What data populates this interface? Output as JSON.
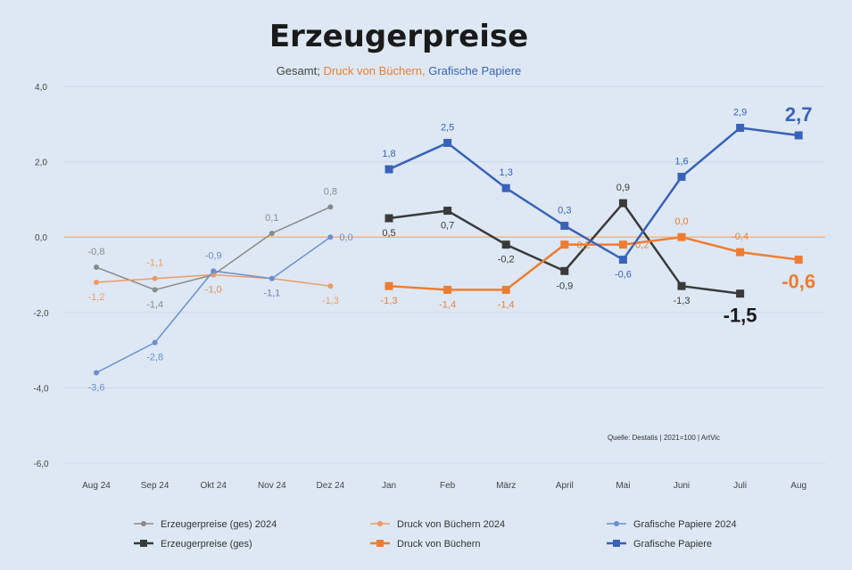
{
  "chart_data": {
    "type": "line",
    "title": "Erzeugerpreise",
    "subtitle": {
      "prefix": "Gesamt;",
      "part1": "Druck von Büchern,",
      "part2": "Grafische Papiere"
    },
    "source": "Quelle: Destatis | 2021=100 | ArtVic",
    "ylim": [
      -6.0,
      4.0
    ],
    "yticks": [
      4.0,
      2.0,
      0.0,
      -2.0,
      -4.0,
      -6.0
    ],
    "ytick_labels": [
      "4,0",
      "2,0",
      "0,0",
      "-2,0",
      "-4,0",
      "-6,0"
    ],
    "categories": [
      "Aug 24",
      "Sep 24",
      "Okt 24",
      "Nov 24",
      "Dez 24",
      "Jan",
      "Feb",
      "März",
      "April",
      "Mai",
      "Juni",
      "Juli",
      "Aug"
    ],
    "colors": {
      "gray_light": "#8a8a8a",
      "gray_dark": "#3a3a3a",
      "orange_light": "#ee9a62",
      "orange": "#ee7d31",
      "blue_light": "#6a8fd0",
      "blue": "#3a62b8",
      "zero_line": "#f2b584"
    },
    "series": [
      {
        "name": "Erzeugerpreise (ges) 2024",
        "style": "prev",
        "color": "#8a8a8a",
        "marker": "circle",
        "x": [
          "Aug 24",
          "Sep 24",
          "Okt 24",
          "Nov 24",
          "Dez 24"
        ],
        "values": [
          -0.8,
          -1.4,
          -1.0,
          0.1,
          0.8
        ],
        "labels": [
          "-0,8",
          "-1,4",
          "-1,0",
          "0,1",
          "0,8"
        ],
        "label_pos": [
          "above",
          "below",
          "below",
          "above",
          "above"
        ],
        "label_big": [
          false,
          false,
          false,
          false,
          false
        ]
      },
      {
        "name": "Druck von Büchern 2024",
        "style": "prev",
        "color": "#ee9a62",
        "marker": "circle",
        "x": [
          "Aug 24",
          "Sep 24",
          "Okt 24",
          "Nov 24",
          "Dez 24"
        ],
        "values": [
          -1.2,
          -1.1,
          -1.0,
          -1.1,
          -1.3
        ],
        "labels": [
          "-1,2",
          "-1,1",
          "-1,0",
          "-1,1",
          "-1,3"
        ],
        "label_pos": [
          "below",
          "above",
          "below",
          "below",
          "below"
        ],
        "label_big": [
          false,
          false,
          false,
          false,
          false
        ]
      },
      {
        "name": "Grafische Papiere 2024",
        "style": "prev",
        "color": "#6a8fd0",
        "marker": "circle",
        "x": [
          "Aug 24",
          "Sep 24",
          "Okt 24",
          "Nov 24",
          "Dez 24"
        ],
        "values": [
          -3.6,
          -2.8,
          -0.9,
          -1.1,
          0.0
        ],
        "labels": [
          "-3,6",
          "-2,8",
          "-0,9",
          "-1,1",
          "0,0"
        ],
        "label_pos": [
          "below",
          "below",
          "above",
          "below",
          "right"
        ],
        "label_big": [
          false,
          false,
          false,
          false,
          false
        ]
      },
      {
        "name": "Erzeugerpreise (ges)",
        "style": "curr",
        "color": "#3a3a3a",
        "marker": "square",
        "x": [
          "Jan",
          "Feb",
          "März",
          "April",
          "Mai",
          "Juni",
          "Juli"
        ],
        "values": [
          0.5,
          0.7,
          -0.2,
          -0.9,
          0.9,
          -1.3,
          -1.5
        ],
        "labels": [
          "0,5",
          "0,7",
          "-0,2",
          "-0,9",
          "0,9",
          "-1,3",
          "-1,5"
        ],
        "label_pos": [
          "below",
          "below",
          "below",
          "below",
          "above",
          "below",
          "below"
        ],
        "label_big": [
          false,
          false,
          false,
          false,
          false,
          false,
          true
        ]
      },
      {
        "name": "Druck von Büchern",
        "style": "curr",
        "color": "#ee7d31",
        "marker": "square",
        "x": [
          "Jan",
          "Feb",
          "März",
          "April",
          "Mai",
          "Juni",
          "Juli",
          "Aug"
        ],
        "values": [
          -1.3,
          -1.4,
          -1.4,
          -0.2,
          -0.2,
          0.0,
          -0.4,
          -0.6
        ],
        "labels": [
          "-1,3",
          "-1,4",
          "-1,4",
          "-0,2",
          "-0,2",
          "0,0",
          "-0,4",
          "-0,6"
        ],
        "label_pos": [
          "below",
          "below",
          "below",
          "right",
          "right",
          "above",
          "above",
          "below"
        ],
        "label_big": [
          false,
          false,
          false,
          false,
          false,
          false,
          false,
          true
        ]
      },
      {
        "name": "Grafische Papiere",
        "style": "curr",
        "color": "#3a62b8",
        "marker": "square",
        "x": [
          "Jan",
          "Feb",
          "März",
          "April",
          "Mai",
          "Juni",
          "Juli",
          "Aug"
        ],
        "values": [
          1.8,
          2.5,
          1.3,
          0.3,
          -0.6,
          1.6,
          2.9,
          2.7
        ],
        "labels": [
          "1,8",
          "2,5",
          "1,3",
          "0,3",
          "-0,6",
          "1,6",
          "2,9",
          "2,7"
        ],
        "label_pos": [
          "above",
          "above",
          "above",
          "above",
          "below",
          "above",
          "above",
          "above"
        ],
        "label_big": [
          false,
          false,
          false,
          false,
          false,
          false,
          false,
          true
        ]
      }
    ],
    "legend_position": "bottom",
    "grid": true
  }
}
